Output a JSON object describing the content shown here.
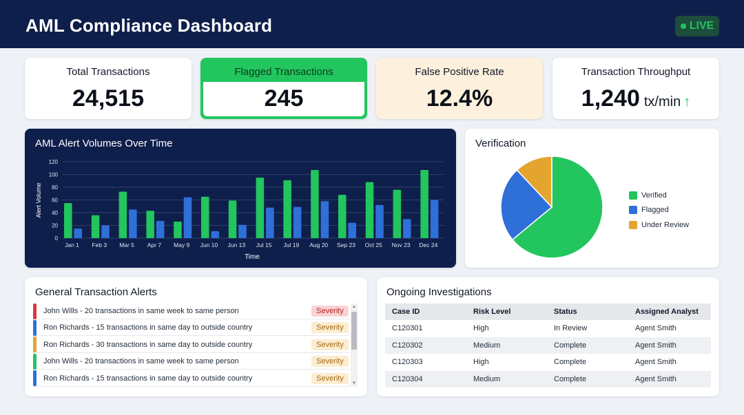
{
  "header": {
    "title": "AML Compliance Dashboard",
    "live_label": "LIVE"
  },
  "kpis": {
    "total": {
      "label": "Total Transactions",
      "value": "24,515"
    },
    "flagged": {
      "label": "Flagged Transactions",
      "value": "245"
    },
    "fpr": {
      "label": "False Positive Rate",
      "value": "12.4%"
    },
    "throughput": {
      "label": "Transaction Throughput",
      "value": "1,240",
      "unit": "tx/min",
      "arrow": "↑"
    }
  },
  "colors": {
    "green": "#22c55e",
    "blue": "#2f6fd8",
    "orange": "#e3a530",
    "navy": "#0f1f4b",
    "red": "#d93a3a"
  },
  "chart_data": [
    {
      "type": "bar",
      "title": "AML Alert Volumes Over Time",
      "xlabel": "Time",
      "ylabel": "Alert Volume",
      "ylim": [
        0,
        120
      ],
      "yticks": [
        0,
        20,
        40,
        60,
        80,
        100,
        120
      ],
      "grid": true,
      "categories": [
        "Jan 1",
        "Feb 3",
        "Mar 5",
        "Apr 7",
        "May 9",
        "Jun 10",
        "Jun 13",
        "Jul 15",
        "Jul 19",
        "Aug 20",
        "Sep 23",
        "Oct 25",
        "Nov 23",
        "Dec 24"
      ],
      "series": [
        {
          "color": "#22c55e",
          "values": [
            55,
            36,
            73,
            43,
            26,
            65,
            59,
            95,
            91,
            107,
            68,
            88,
            76,
            107
          ]
        },
        {
          "color": "#2f6fd8",
          "values": [
            15,
            20,
            45,
            27,
            64,
            11,
            21,
            48,
            49,
            58,
            24,
            52,
            30,
            60
          ]
        }
      ]
    },
    {
      "type": "pie",
      "title": "Verification",
      "legend": "right",
      "labels": [
        "Verified",
        "Flagged",
        "Under Review"
      ],
      "values": [
        64,
        24,
        12
      ],
      "colors": [
        "#22c55e",
        "#2f6fd8",
        "#e3a530"
      ]
    }
  ],
  "alerts": {
    "title": "General Transaction Alerts",
    "items": [
      {
        "text": "John Wills - 20 transactions in same week to same person",
        "severity": "Severity",
        "color": "#d93a3a",
        "badge_bg": "#f9d3d3",
        "badge_fg": "#b42323"
      },
      {
        "text": "Ron Richards - 15 transactions in same day to outside country",
        "severity": "Severity",
        "color": "#2f6fd8",
        "badge_bg": "#fcecd0",
        "badge_fg": "#a36a14"
      },
      {
        "text": "Ron Richards - 30 transactions in same day to outside country",
        "severity": "Severity",
        "color": "#e3a530",
        "badge_bg": "#fcecd0",
        "badge_fg": "#a36a14"
      },
      {
        "text": "John Wills - 20 transactions in same week to same person",
        "severity": "Severity",
        "color": "#22c55e",
        "badge_bg": "#fcecd0",
        "badge_fg": "#a36a14"
      },
      {
        "text": "Ron Richards - 15 transactions in same day to outside country",
        "severity": "Severity",
        "color": "#2f6fd8",
        "badge_bg": "#fcecd0",
        "badge_fg": "#a36a14"
      }
    ]
  },
  "investigations": {
    "title": "Ongoing Investigations",
    "columns": [
      "Case ID",
      "Risk Level",
      "Status",
      "Assigned Analyst"
    ],
    "rows": [
      [
        "C120301",
        "High",
        "In Review",
        "Agent Smith"
      ],
      [
        "C120302",
        "Medium",
        "Complete",
        "Agent Smith"
      ],
      [
        "C120303",
        "High",
        "Complete",
        "Agent Smith"
      ],
      [
        "C120304",
        "Medium",
        "Complete",
        "Agent Smith"
      ]
    ]
  }
}
